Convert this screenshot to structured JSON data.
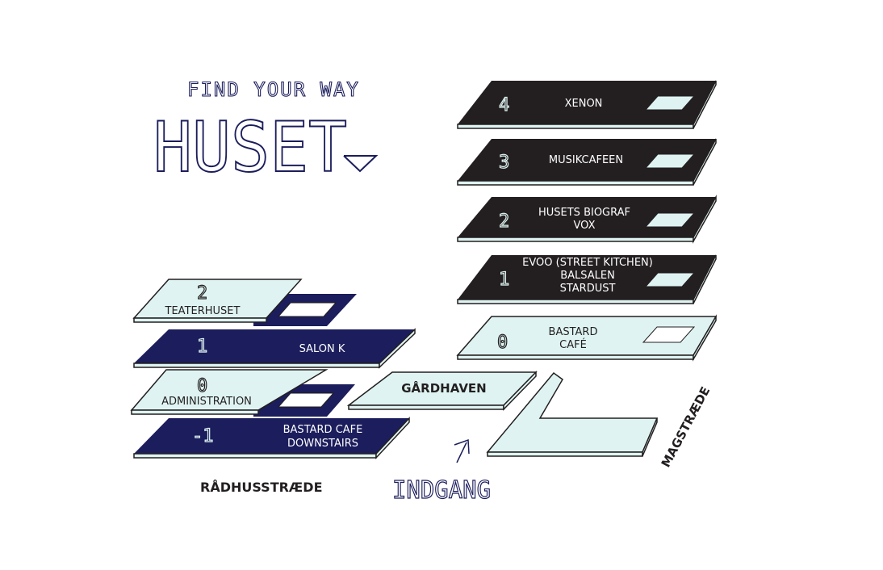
{
  "header": {
    "tagline": "FIND YOUR WAY",
    "title": "HUSET"
  },
  "colors": {
    "navy": "#1b1d5c",
    "dark": "#231f20",
    "light": "#dff4f2",
    "outline": "#231f20"
  },
  "right_stack": [
    {
      "number": "4",
      "lines": [
        "XENON"
      ]
    },
    {
      "number": "3",
      "lines": [
        "MUSIKCAFEEN"
      ]
    },
    {
      "number": "2",
      "lines": [
        "HUSETS BIOGRAF",
        "VOX"
      ]
    },
    {
      "number": "1",
      "lines": [
        "EVOO (STREET KITCHEN)",
        "BALSALEN",
        "STARDUST"
      ]
    },
    {
      "number": "0",
      "lines": [
        "BASTARD",
        "CAFÉ"
      ]
    }
  ],
  "left_stack": [
    {
      "number": "2",
      "lines": [
        "TEATERHUSET"
      ]
    },
    {
      "number": "1",
      "lines": [
        "SALON K"
      ]
    },
    {
      "number": "0",
      "lines": [
        "ADMINISTRATION"
      ]
    },
    {
      "number": "-1",
      "lines": [
        "BASTARD CAFE",
        "DOWNSTAIRS"
      ]
    }
  ],
  "courtyard": "GÅRDHAVEN",
  "streets": {
    "left": "RÅDHUSSTRÆDE",
    "right": "MAGSTRÆDE"
  },
  "entrance": "INDGANG"
}
